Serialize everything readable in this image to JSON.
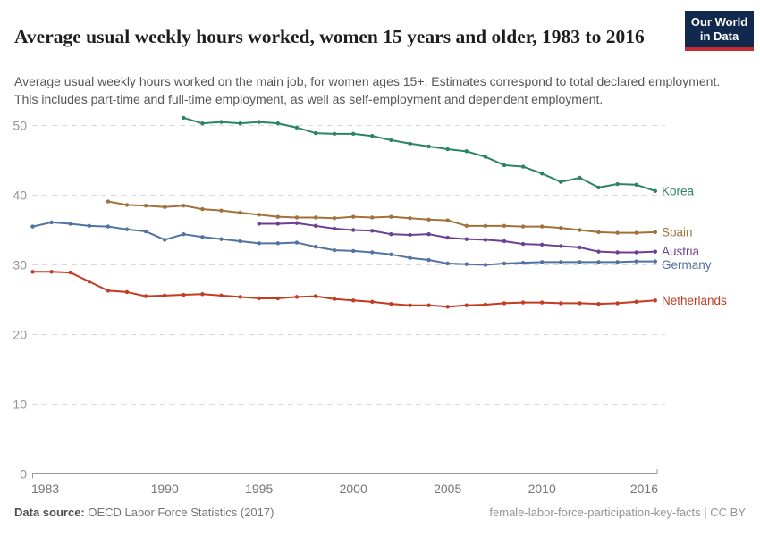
{
  "header": {
    "title": "Average usual weekly hours worked, women 15 years and older, 1983 to 2016",
    "subtitle": "Average usual weekly hours worked on the main job, for women ages 15+. Estimates correspond to total declared employment. This includes part-time and full-time employment, as well as self-employment and dependent employment.",
    "logo": {
      "line1": "Our World",
      "line2": "in Data",
      "bg_color": "#12294E",
      "accent_color": "#C72B32"
    }
  },
  "chart_data": {
    "type": "line",
    "title": "Average usual weekly hours worked, women 15 years and older, 1983 to 2016",
    "xlabel": "",
    "ylabel": "",
    "xlim": [
      1983,
      2016
    ],
    "ylim": [
      0,
      50
    ],
    "x_ticks": [
      1983,
      1990,
      1995,
      2000,
      2005,
      2010,
      2016
    ],
    "y_ticks": [
      0,
      10,
      20,
      30,
      40,
      50
    ],
    "grid": "horizontal-dashed",
    "legend_position": "right-end-labels",
    "series": [
      {
        "name": "Korea",
        "color": "#2C8465",
        "start_year": 1991,
        "values": [
          51.1,
          50.3,
          50.5,
          50.3,
          50.5,
          50.3,
          49.7,
          48.9,
          48.8,
          48.8,
          48.5,
          47.9,
          47.4,
          47.0,
          46.6,
          46.3,
          45.5,
          44.3,
          44.1,
          43.1,
          41.9,
          42.5,
          41.1,
          41.6,
          41.5,
          40.6
        ]
      },
      {
        "name": "Spain",
        "color": "#A0713A",
        "start_year": 1987,
        "values": [
          39.1,
          38.6,
          38.5,
          38.3,
          38.5,
          38.0,
          37.8,
          37.5,
          37.2,
          36.9,
          36.8,
          36.8,
          36.7,
          36.9,
          36.8,
          36.9,
          36.7,
          36.5,
          36.4,
          35.6,
          35.6,
          35.6,
          35.5,
          35.5,
          35.3,
          35.0,
          34.7,
          34.6,
          34.6,
          34.7
        ]
      },
      {
        "name": "Austria",
        "color": "#6D3E91",
        "start_year": 1995,
        "values": [
          35.9,
          35.9,
          36.0,
          35.6,
          35.2,
          35.0,
          34.9,
          34.4,
          34.3,
          34.4,
          33.9,
          33.7,
          33.6,
          33.4,
          33.0,
          32.9,
          32.7,
          32.5,
          31.9,
          31.8,
          31.8,
          31.9
        ]
      },
      {
        "name": "Germany",
        "color": "#52729F",
        "start_year": 1983,
        "values": [
          35.5,
          36.1,
          35.9,
          35.6,
          35.5,
          35.1,
          34.8,
          33.6,
          34.4,
          34.0,
          33.7,
          33.4,
          33.1,
          33.1,
          33.2,
          32.6,
          32.1,
          32.0,
          31.8,
          31.5,
          31.0,
          30.7,
          30.2,
          30.1,
          30.0,
          30.2,
          30.3,
          30.4,
          30.4,
          30.4,
          30.4,
          30.4,
          30.5,
          30.5
        ]
      },
      {
        "name": "Netherlands",
        "color": "#C23B22",
        "start_year": 1983,
        "values": [
          29.0,
          29.0,
          28.9,
          27.6,
          26.3,
          26.1,
          25.5,
          25.6,
          25.7,
          25.8,
          25.6,
          25.4,
          25.2,
          25.2,
          25.4,
          25.5,
          25.1,
          24.9,
          24.7,
          24.4,
          24.2,
          24.2,
          24.0,
          24.2,
          24.3,
          24.5,
          24.6,
          24.6,
          24.5,
          24.5,
          24.4,
          24.5,
          24.7,
          24.9
        ]
      }
    ]
  },
  "footer": {
    "datasource_label": "Data source:",
    "datasource_value": "OECD Labor Force Statistics (2017)",
    "permalink": "female-labor-force-participation-key-facts | CC BY"
  }
}
